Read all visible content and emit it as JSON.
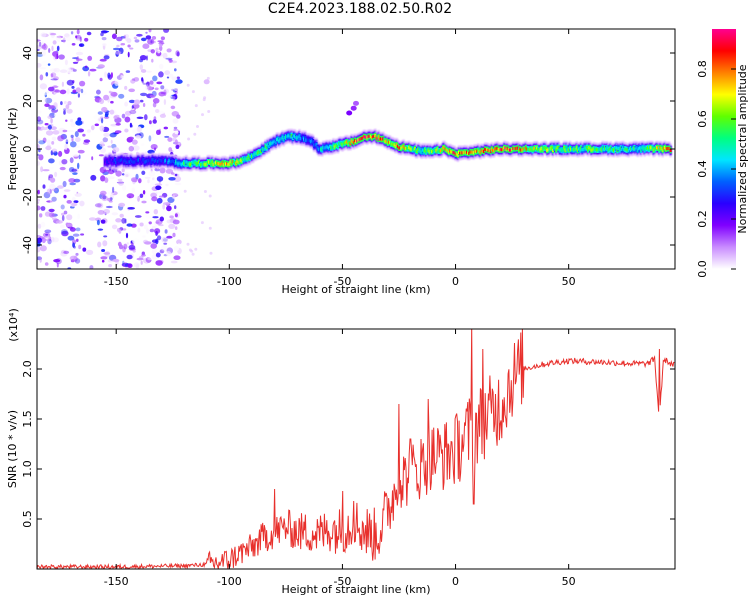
{
  "title": "C2E4.2023.188.02.50.R02",
  "chart_data": [
    {
      "type": "heatmap",
      "xlabel": "Height of straight line (km)",
      "ylabel": "Frequency (Hz)",
      "xlim": [
        -185,
        97
      ],
      "ylim": [
        -50,
        50
      ],
      "x_ticks": [
        -150,
        -100,
        -50,
        0,
        50
      ],
      "y_ticks": [
        -40,
        -20,
        0,
        20,
        40
      ],
      "colorbar": {
        "label": "Normalized spectral amplitude",
        "range": [
          0,
          0.96
        ],
        "ticks": [
          0.0,
          0.2,
          0.4,
          0.6,
          0.8
        ],
        "colormap": [
          "#ffffff",
          "#c98cff",
          "#8000ff",
          "#2a00ff",
          "#0060ff",
          "#00e6ff",
          "#00ff80",
          "#60ff00",
          "#ffff00",
          "#ff8000",
          "#ff0000",
          "#ff0090"
        ]
      },
      "ridge": {
        "x": [
          -155,
          -150,
          -140,
          -130,
          -120,
          -110,
          -100,
          -95,
          -90,
          -85,
          -80,
          -75,
          -70,
          -65,
          -60,
          -55,
          -50,
          -45,
          -40,
          -35,
          -30,
          -25,
          -20,
          -15,
          -10,
          -5,
          0,
          10,
          20,
          40,
          60,
          80,
          95
        ],
        "freq": [
          -5,
          -5,
          -5,
          -5,
          -6,
          -6,
          -6,
          -5,
          -3,
          0,
          3,
          5,
          5,
          4,
          0,
          1,
          2,
          3,
          5,
          5,
          3,
          1,
          0,
          -1,
          -1,
          0,
          -2,
          -1,
          0,
          0,
          0,
          0,
          0
        ],
        "amplitude": [
          0.25,
          0.3,
          0.3,
          0.3,
          0.5,
          0.6,
          0.7,
          0.6,
          0.5,
          0.5,
          0.45,
          0.5,
          0.45,
          0.35,
          0.4,
          0.55,
          0.6,
          0.75,
          0.9,
          0.85,
          0.7,
          0.8,
          0.6,
          0.5,
          0.6,
          0.7,
          0.8,
          0.7,
          0.85,
          0.6,
          0.55,
          0.5,
          0.75
        ]
      },
      "noise_region": {
        "x_range": [
          -185,
          -122
        ],
        "freq_range": [
          -50,
          50
        ],
        "amplitude": 0.25
      }
    },
    {
      "type": "line",
      "xlabel": "Height of straight line (km)",
      "ylabel": "SNR (10 * v/v)",
      "multiplier": "(x10⁴)",
      "xlim": [
        -185,
        97
      ],
      "ylim": [
        0,
        2.4
      ],
      "x_ticks": [
        -150,
        -100,
        -50,
        0,
        50
      ],
      "y_ticks": [
        0.5,
        1.0,
        1.5,
        2.0
      ],
      "color": "#e8302c",
      "x": [
        -185,
        -150,
        -120,
        -105,
        -100,
        -95,
        -90,
        -85,
        -80,
        -75,
        -70,
        -65,
        -60,
        -55,
        -50,
        -45,
        -40,
        -35,
        -30,
        -25,
        -20,
        -15,
        -10,
        -5,
        0,
        5,
        10,
        15,
        20,
        25,
        30,
        40,
        50,
        60,
        70,
        80,
        85,
        88,
        90,
        92,
        95,
        97
      ],
      "y": [
        0.02,
        0.02,
        0.03,
        0.05,
        0.08,
        0.15,
        0.2,
        0.3,
        0.35,
        0.4,
        0.35,
        0.35,
        0.32,
        0.38,
        0.35,
        0.45,
        0.35,
        0.3,
        0.55,
        0.85,
        0.9,
        1.0,
        1.1,
        1.1,
        1.15,
        1.3,
        1.4,
        1.5,
        1.6,
        1.85,
        2.0,
        2.05,
        2.08,
        2.07,
        2.06,
        2.05,
        2.05,
        2.1,
        1.5,
        2.1,
        2.05,
        2.03
      ],
      "spikes": [
        {
          "x": -80,
          "y": 0.8
        },
        {
          "x": -50,
          "y": 0.78
        },
        {
          "x": -45,
          "y": 0.68
        },
        {
          "x": -25,
          "y": 1.65
        },
        {
          "x": -20,
          "y": 1.3
        },
        {
          "x": -12,
          "y": 1.7
        },
        {
          "x": 7,
          "y": 2.45
        },
        {
          "x": 8,
          "y": 0.65
        },
        {
          "x": 12,
          "y": 2.2
        },
        {
          "x": 90,
          "y": 2.2
        }
      ]
    }
  ]
}
